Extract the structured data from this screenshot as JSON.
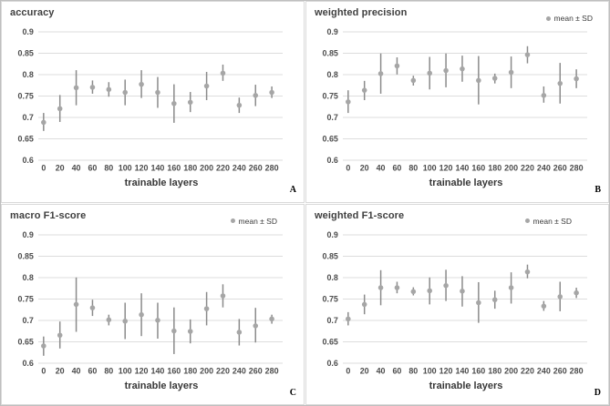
{
  "legend_label": "mean ± SD",
  "colors": {
    "marker": "#a6a6a6",
    "error_bar": "#8a8a8a",
    "gridline": "#dddddd",
    "title_text": "#3f3f3f",
    "tick_text": "#4d4d4d",
    "axis_title_text": "#383838",
    "panel_letter": "#000000",
    "panel_border": "#d9d9d9"
  },
  "axis": {
    "y_min": 0.6,
    "y_max": 0.9,
    "y_ticks": [
      0.9,
      0.85,
      0.8,
      0.75,
      0.7,
      0.65,
      0.6
    ],
    "x_categories": [
      0,
      20,
      40,
      60,
      80,
      100,
      120,
      140,
      160,
      180,
      200,
      220,
      240,
      260,
      280
    ]
  },
  "chart_data": [
    {
      "type": "scatter",
      "title": "accuracy",
      "xlabel": "trainable layers",
      "panel_letter": "A",
      "has_legend": false,
      "legend": "mean ± SD",
      "ylim": [
        0.6,
        0.9
      ],
      "categories": [
        0,
        20,
        40,
        60,
        80,
        100,
        120,
        140,
        160,
        180,
        200,
        220,
        240,
        260,
        280
      ],
      "mean": [
        0.688,
        0.72,
        0.769,
        0.77,
        0.765,
        0.758,
        0.777,
        0.758,
        0.732,
        0.735,
        0.773,
        0.803,
        0.728,
        0.751,
        0.758
      ],
      "low": [
        0.668,
        0.689,
        0.728,
        0.755,
        0.748,
        0.728,
        0.745,
        0.722,
        0.687,
        0.712,
        0.74,
        0.785,
        0.71,
        0.726,
        0.745
      ],
      "high": [
        0.71,
        0.752,
        0.81,
        0.786,
        0.782,
        0.788,
        0.81,
        0.794,
        0.777,
        0.759,
        0.806,
        0.823,
        0.746,
        0.776,
        0.772
      ]
    },
    {
      "type": "scatter",
      "title": "weighted precision",
      "xlabel": "trainable layers",
      "panel_letter": "B",
      "has_legend": true,
      "legend": "mean ± SD",
      "ylim": [
        0.6,
        0.9
      ],
      "categories": [
        0,
        20,
        40,
        60,
        80,
        100,
        120,
        140,
        160,
        180,
        200,
        220,
        240,
        260,
        280
      ],
      "mean": [
        0.736,
        0.763,
        0.802,
        0.82,
        0.786,
        0.803,
        0.809,
        0.813,
        0.786,
        0.791,
        0.805,
        0.846,
        0.751,
        0.779,
        0.79
      ],
      "low": [
        0.71,
        0.74,
        0.755,
        0.8,
        0.774,
        0.765,
        0.77,
        0.783,
        0.73,
        0.779,
        0.768,
        0.826,
        0.734,
        0.732,
        0.768
      ],
      "high": [
        0.763,
        0.785,
        0.849,
        0.84,
        0.797,
        0.841,
        0.849,
        0.844,
        0.843,
        0.802,
        0.842,
        0.866,
        0.772,
        0.827,
        0.812
      ]
    },
    {
      "type": "scatter",
      "title": "macro F1-score",
      "xlabel": "trainable layers",
      "panel_letter": "C",
      "has_legend": true,
      "legend": "mean ± SD",
      "ylim": [
        0.6,
        0.9
      ],
      "categories": [
        0,
        20,
        40,
        60,
        80,
        100,
        120,
        140,
        160,
        180,
        200,
        220,
        240,
        260,
        280
      ],
      "mean": [
        0.64,
        0.665,
        0.737,
        0.729,
        0.701,
        0.698,
        0.713,
        0.7,
        0.675,
        0.674,
        0.727,
        0.757,
        0.672,
        0.687,
        0.703
      ],
      "low": [
        0.617,
        0.634,
        0.673,
        0.71,
        0.688,
        0.656,
        0.663,
        0.657,
        0.621,
        0.646,
        0.688,
        0.73,
        0.641,
        0.648,
        0.692
      ],
      "high": [
        0.662,
        0.697,
        0.8,
        0.748,
        0.713,
        0.741,
        0.763,
        0.741,
        0.73,
        0.702,
        0.766,
        0.784,
        0.703,
        0.729,
        0.713
      ]
    },
    {
      "type": "scatter",
      "title": "weighted F1-score",
      "xlabel": "trainable layers",
      "panel_letter": "D",
      "has_legend": true,
      "legend": "mean ± SD",
      "ylim": [
        0.6,
        0.9
      ],
      "categories": [
        0,
        20,
        40,
        60,
        80,
        100,
        120,
        140,
        160,
        180,
        200,
        220,
        240,
        260,
        280
      ],
      "mean": [
        0.703,
        0.737,
        0.776,
        0.776,
        0.767,
        0.769,
        0.781,
        0.768,
        0.741,
        0.748,
        0.776,
        0.813,
        0.733,
        0.755,
        0.764
      ],
      "low": [
        0.688,
        0.714,
        0.735,
        0.763,
        0.758,
        0.737,
        0.745,
        0.732,
        0.694,
        0.727,
        0.739,
        0.798,
        0.722,
        0.721,
        0.752
      ],
      "high": [
        0.719,
        0.76,
        0.817,
        0.79,
        0.777,
        0.8,
        0.818,
        0.803,
        0.789,
        0.769,
        0.812,
        0.83,
        0.745,
        0.79,
        0.776
      ]
    }
  ]
}
